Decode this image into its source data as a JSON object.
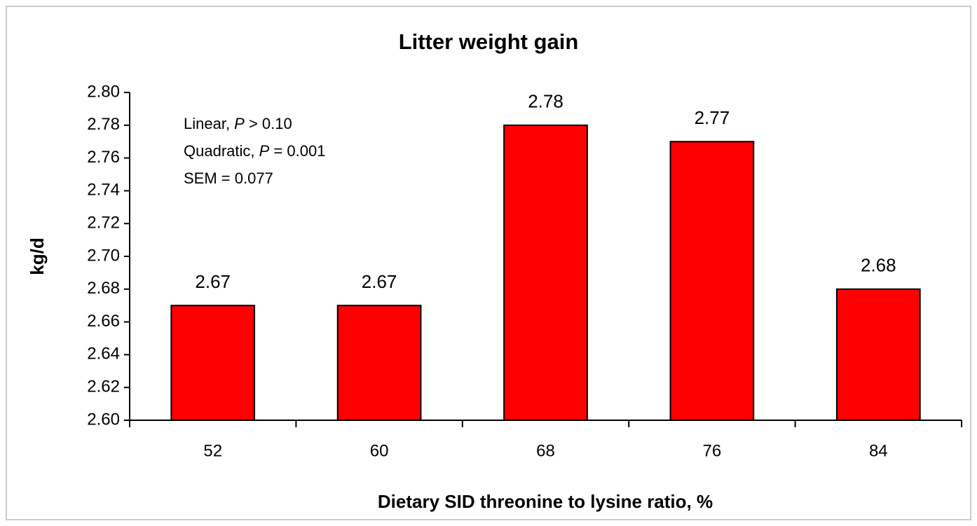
{
  "chart_data": {
    "type": "bar",
    "title": "Litter weight gain",
    "y_label": "kg/d",
    "x_label": "Dietary SID threonine to lysine ratio, %",
    "categories": [
      "52",
      "60",
      "68",
      "76",
      "84"
    ],
    "values": [
      2.67,
      2.67,
      2.78,
      2.77,
      2.68
    ],
    "color": "#ff0000",
    "ylim": [
      2.6,
      2.8
    ],
    "yticks": [
      {
        "value": 2.6,
        "label": "2.60"
      },
      {
        "value": 2.62,
        "label": "2.62"
      },
      {
        "value": 2.64,
        "label": "2.64"
      },
      {
        "value": 2.66,
        "label": "2.66"
      },
      {
        "value": 2.68,
        "label": "2.68"
      },
      {
        "value": 2.7,
        "label": "2.70"
      },
      {
        "value": 2.72,
        "label": "2.72"
      },
      {
        "value": 2.74,
        "label": "2.74"
      },
      {
        "value": 2.76,
        "label": "2.76"
      },
      {
        "value": 2.78,
        "label": "2.78"
      },
      {
        "value": 2.8,
        "label": "2.80"
      }
    ],
    "grid": false,
    "annotations": [
      [
        "Linear, ",
        "P",
        " > 0.10"
      ],
      [
        "Quadratic, ",
        "P",
        " = 0.001"
      ],
      [
        "SEM = 0.077"
      ]
    ]
  }
}
